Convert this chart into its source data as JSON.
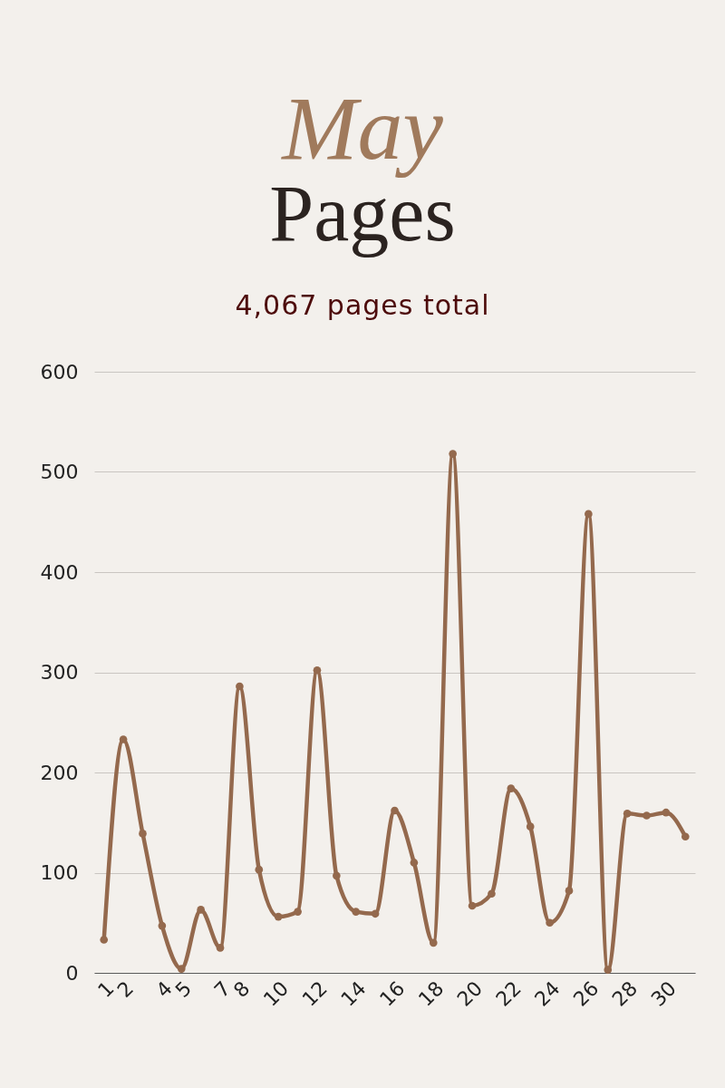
{
  "chart_data": {
    "type": "line",
    "title": "May",
    "subtitle": "Pages",
    "annotations": [
      "4,067 pages total"
    ],
    "categories": [
      "1",
      "2",
      null,
      "4",
      "5",
      null,
      "7",
      "8",
      null,
      "10",
      null,
      "12",
      null,
      "14",
      null,
      "16",
      null,
      "18",
      null,
      "20",
      null,
      "22",
      null,
      "24",
      null,
      "26",
      null,
      "28",
      null,
      "30",
      null
    ],
    "series": [
      {
        "color": "#94694d",
        "values": [
          33,
          233,
          139,
          47,
          4,
          63,
          25,
          286,
          103,
          56,
          61,
          302,
          97,
          61,
          59,
          162,
          110,
          30,
          518,
          67,
          79,
          184,
          146,
          50,
          82,
          458,
          3,
          159,
          157,
          160,
          136
        ]
      }
    ],
    "ylim": [
      0,
      600
    ],
    "yticks": [
      0,
      100,
      200,
      300,
      400,
      500,
      600
    ],
    "grid": "y",
    "marker": "circle",
    "line_style": "solid"
  }
}
